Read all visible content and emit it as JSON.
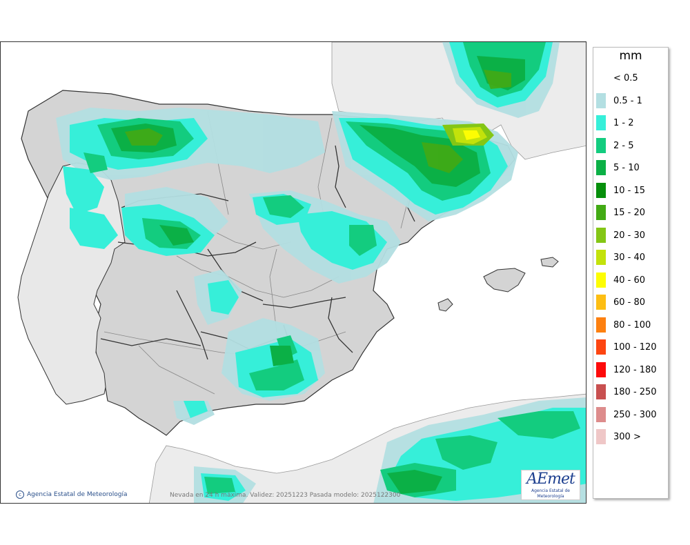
{
  "legend": {
    "unit": "mm",
    "items": [
      {
        "label": "< 0.5",
        "color": "#ffffff"
      },
      {
        "label": "0.5 - 1",
        "color": "#b3dfe2"
      },
      {
        "label": "1 - 2",
        "color": "#36efd9"
      },
      {
        "label": "2 - 5",
        "color": "#13cc7f"
      },
      {
        "label": "5 - 10",
        "color": "#0bb046"
      },
      {
        "label": "10 - 15",
        "color": "#068f0b"
      },
      {
        "label": "15 - 20",
        "color": "#42aa14"
      },
      {
        "label": "20 - 30",
        "color": "#84c615"
      },
      {
        "label": "30 - 40",
        "color": "#c3e20b"
      },
      {
        "label": "40 - 60",
        "color": "#fdfd03"
      },
      {
        "label": "60 - 80",
        "color": "#fdbe13"
      },
      {
        "label": "80 - 100",
        "color": "#fd8010"
      },
      {
        "label": "100 - 120",
        "color": "#fd4511"
      },
      {
        "label": "120 - 180",
        "color": "#fd0a0a"
      },
      {
        "label": "180 - 250",
        "color": "#c85050"
      },
      {
        "label": "250 - 300",
        "color": "#dd8c8c"
      },
      {
        "label": "300 >",
        "color": "#efc7c7"
      }
    ]
  },
  "footer": {
    "credit": "Agencia Estatal de Meteorología",
    "caption": "Nevada en 24 h máxima. Validez: 20251223 Pasada modelo: 2025122300",
    "logo_text": "AEmet",
    "logo_sub": "Agencia Estatal de Meteorología"
  },
  "colors": {
    "sea": "#ffffff",
    "land": "#d4d4d4",
    "foreign_land": "#ececec",
    "border": "#333333",
    "region_border": "#888888"
  }
}
